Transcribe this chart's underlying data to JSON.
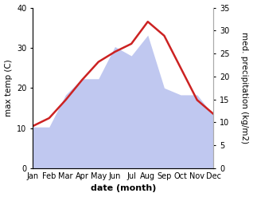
{
  "months": [
    "Jan",
    "Feb",
    "Mar",
    "Apr",
    "May",
    "Jun",
    "Jul",
    "Aug",
    "Sep",
    "Oct",
    "Nov",
    "Dec"
  ],
  "month_positions": [
    1,
    2,
    3,
    4,
    5,
    6,
    7,
    8,
    9,
    10,
    11,
    12
  ],
  "max_temp": [
    10.5,
    12.5,
    17.0,
    22.0,
    26.5,
    29.0,
    31.0,
    36.5,
    33.0,
    25.0,
    17.0,
    13.5
  ],
  "precipitation_kg": [
    9.0,
    9.0,
    16.0,
    19.5,
    19.5,
    26.5,
    24.5,
    29.0,
    17.5,
    16.0,
    16.0,
    11.5
  ],
  "temp_ylim": [
    0,
    40
  ],
  "precip_ylim": [
    0,
    35
  ],
  "temp_color": "#cc2222",
  "precip_fill_color": "#c0c8f0",
  "precip_fill_alpha": 1.0,
  "background_color": "#ffffff",
  "xlabel": "date (month)",
  "ylabel_left": "max temp (C)",
  "ylabel_right": "med. precipitation (kg/m2)",
  "tick_fontsize": 7,
  "xlabel_fontsize": 8,
  "ylabel_fontsize": 7.5
}
